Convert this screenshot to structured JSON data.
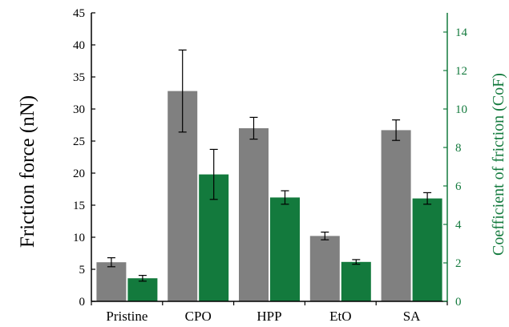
{
  "chart_data": {
    "type": "bar",
    "categories": [
      "Pristine",
      "CPO",
      "HPP",
      "EtO",
      "SA"
    ],
    "ylabel": "Friction force (nN)",
    "ylabel_right": "Coefficient of friction (CoF)",
    "ylim": [
      0,
      45
    ],
    "yticks": [
      0,
      5,
      10,
      15,
      20,
      25,
      30,
      35,
      40,
      45
    ],
    "ylim_right": [
      0,
      15
    ],
    "yticks_right": [
      0,
      2,
      4,
      6,
      8,
      10,
      12,
      14
    ],
    "grid": false,
    "legend": "none",
    "series": [
      {
        "axis": "left",
        "color": "#808080",
        "values": [
          6.1,
          32.8,
          27.0,
          10.2,
          26.7
        ],
        "errors": [
          0.7,
          6.4,
          1.7,
          0.6,
          1.6
        ]
      },
      {
        "axis": "right",
        "color": "#137a3d",
        "values": [
          1.2,
          6.6,
          5.4,
          2.05,
          5.35
        ],
        "errors": [
          0.15,
          1.3,
          0.35,
          0.12,
          0.3
        ]
      }
    ],
    "right_axis_color": "#137a3d"
  }
}
